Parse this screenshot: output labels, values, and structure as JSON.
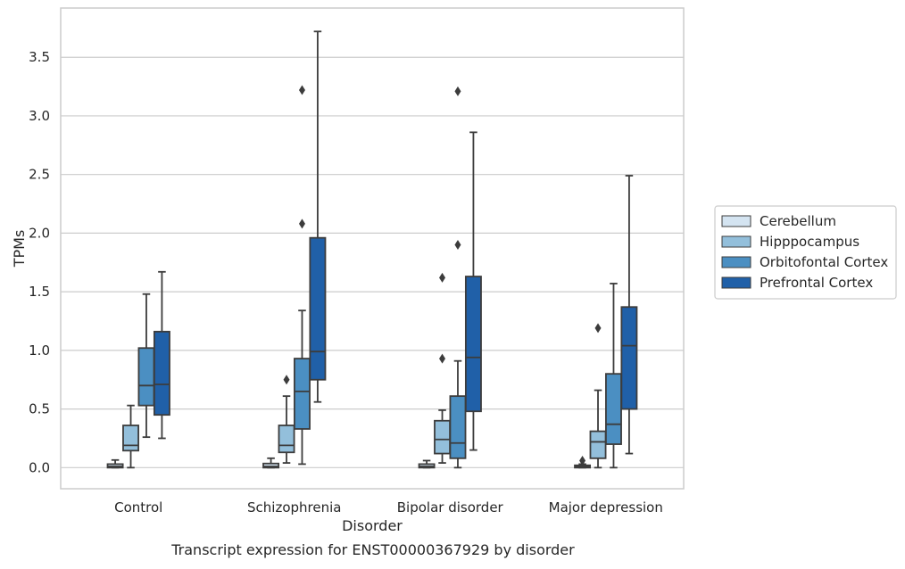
{
  "caption": "Transcript expression for ENST00000367929 by disorder",
  "chart_data": {
    "type": "boxplot",
    "title": "",
    "xlabel": "Disorder",
    "ylabel": "TPMs",
    "ylim": [
      -0.18,
      3.92
    ],
    "yticks": [
      0.0,
      0.5,
      1.0,
      1.5,
      2.0,
      2.5,
      3.0,
      3.5
    ],
    "ytick_labels": [
      "0.0",
      "0.5",
      "1.0",
      "1.5",
      "2.0",
      "2.5",
      "3.0",
      "3.5"
    ],
    "grid": "horizontal",
    "legend_position": "right",
    "categories": [
      "Control",
      "Schizophrenia",
      "Bipolar disorder",
      "Major depression"
    ],
    "series": [
      {
        "name": "Cerebellum",
        "color": "#d4e4f1",
        "boxes": [
          {
            "whislo": 0.0,
            "q1": 0.0,
            "med": 0.01,
            "q3": 0.03,
            "whishi": 0.065,
            "fliers": []
          },
          {
            "whislo": 0.0,
            "q1": 0.0,
            "med": 0.01,
            "q3": 0.035,
            "whishi": 0.08,
            "fliers": []
          },
          {
            "whislo": 0.0,
            "q1": 0.0,
            "med": 0.01,
            "q3": 0.03,
            "whishi": 0.06,
            "fliers": []
          },
          {
            "whislo": 0.0,
            "q1": 0.0,
            "med": 0.01,
            "q3": 0.02,
            "whishi": 0.03,
            "fliers": [
              0.06
            ]
          }
        ]
      },
      {
        "name": "Hipppocampus",
        "color": "#93bfdb",
        "boxes": [
          {
            "whislo": 0.0,
            "q1": 0.145,
            "med": 0.19,
            "q3": 0.36,
            "whishi": 0.53,
            "fliers": []
          },
          {
            "whislo": 0.04,
            "q1": 0.13,
            "med": 0.19,
            "q3": 0.36,
            "whishi": 0.61,
            "fliers": [
              0.75
            ]
          },
          {
            "whislo": 0.04,
            "q1": 0.12,
            "med": 0.24,
            "q3": 0.4,
            "whishi": 0.49,
            "fliers": [
              0.93,
              1.62
            ]
          },
          {
            "whislo": 0.0,
            "q1": 0.08,
            "med": 0.22,
            "q3": 0.31,
            "whishi": 0.66,
            "fliers": [
              1.19
            ]
          }
        ]
      },
      {
        "name": "Orbitofontal Cortex",
        "color": "#4b8fc2",
        "boxes": [
          {
            "whislo": 0.26,
            "q1": 0.53,
            "med": 0.7,
            "q3": 1.02,
            "whishi": 1.48,
            "fliers": []
          },
          {
            "whislo": 0.03,
            "q1": 0.33,
            "med": 0.65,
            "q3": 0.93,
            "whishi": 1.34,
            "fliers": [
              2.08,
              3.22
            ]
          },
          {
            "whislo": 0.0,
            "q1": 0.08,
            "med": 0.21,
            "q3": 0.61,
            "whishi": 0.91,
            "fliers": [
              1.9,
              3.21
            ]
          },
          {
            "whislo": 0.0,
            "q1": 0.2,
            "med": 0.37,
            "q3": 0.8,
            "whishi": 1.57,
            "fliers": []
          }
        ]
      },
      {
        "name": "Prefrontal Cortex",
        "color": "#2060a8",
        "boxes": [
          {
            "whislo": 0.25,
            "q1": 0.45,
            "med": 0.71,
            "q3": 1.16,
            "whishi": 1.67,
            "fliers": []
          },
          {
            "whislo": 0.56,
            "q1": 0.75,
            "med": 0.99,
            "q3": 1.96,
            "whishi": 3.72,
            "fliers": []
          },
          {
            "whislo": 0.15,
            "q1": 0.48,
            "med": 0.94,
            "q3": 1.63,
            "whishi": 2.86,
            "fliers": []
          },
          {
            "whislo": 0.12,
            "q1": 0.5,
            "med": 1.04,
            "q3": 1.37,
            "whishi": 2.49,
            "fliers": []
          }
        ]
      }
    ]
  }
}
